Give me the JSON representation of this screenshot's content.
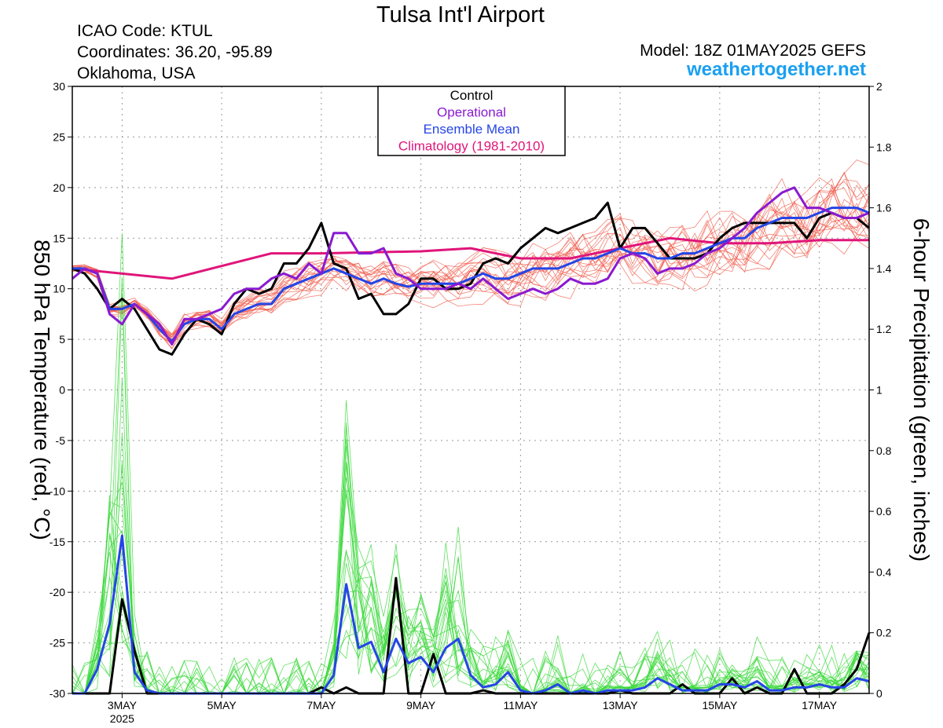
{
  "header": {
    "title": "Tulsa Int'l Airport",
    "icao": "ICAO Code: KTUL",
    "coordinates": "Coordinates: 36.20, -95.89",
    "location": "Oklahoma, USA",
    "model": "Model: 18Z 01MAY2025 GEFS",
    "site": "weathertogether.net"
  },
  "chart_data": {
    "type": "line",
    "ylabel_left": "850 hPa Temperature (red, °C)",
    "ylabel_right": "6-hour Precipitation (green, inches)",
    "y_left_range": [
      -30,
      30
    ],
    "y_left_ticks": [
      "30",
      "25",
      "20",
      "15",
      "10",
      "5",
      "0",
      "-5",
      "-10",
      "-15",
      "-20",
      "-25",
      "-30"
    ],
    "y_right_range": [
      0,
      2
    ],
    "y_right_ticks": [
      "2",
      "1.8",
      "1.6",
      "1.4",
      "1.2",
      "1",
      "0.8",
      "0.6",
      "0.4",
      "0.2",
      "0"
    ],
    "x_range_hours": [
      0,
      384
    ],
    "x_ticks": [
      {
        "hours": 24,
        "label": "3MAY"
      },
      {
        "hours": 72,
        "label": "5MAY"
      },
      {
        "hours": 120,
        "label": "7MAY"
      },
      {
        "hours": 168,
        "label": "9MAY"
      },
      {
        "hours": 216,
        "label": "11MAY"
      },
      {
        "hours": 264,
        "label": "13MAY"
      },
      {
        "hours": 312,
        "label": "15MAY"
      },
      {
        "hours": 360,
        "label": "17MAY"
      }
    ],
    "year_label": "2025",
    "grid": true,
    "legend_position": "top-center",
    "legend": [
      {
        "label": "Control",
        "color": "#000000"
      },
      {
        "label": "Operational",
        "color": "#8a1ad0"
      },
      {
        "label": "Ensemble Mean",
        "color": "#2545e6"
      },
      {
        "label": "Climatology (1981-2010)",
        "color": "#e0157a"
      }
    ],
    "colors": {
      "members_temp": "#f05a4a",
      "members_precip": "#38d838"
    },
    "series": [
      {
        "name": "Control",
        "axis": "temp",
        "color": "#000000",
        "x": [
          0,
          6,
          12,
          18,
          24,
          30,
          36,
          42,
          48,
          54,
          60,
          66,
          72,
          78,
          84,
          90,
          96,
          102,
          108,
          114,
          120,
          126,
          132,
          138,
          144,
          150,
          156,
          162,
          168,
          174,
          180,
          186,
          192,
          198,
          204,
          210,
          216,
          222,
          228,
          234,
          240,
          246,
          252,
          258,
          264,
          270,
          276,
          282,
          288,
          294,
          300,
          306,
          312,
          318,
          324,
          330,
          336,
          342,
          348,
          354,
          360,
          366,
          372,
          378,
          384
        ],
        "y": [
          12,
          11.5,
          10,
          8,
          9,
          8,
          6,
          4,
          3.5,
          5.5,
          7,
          6.5,
          5.5,
          8.5,
          10,
          9.5,
          10,
          12.5,
          12.5,
          14,
          16.5,
          12.5,
          12,
          9,
          9.5,
          7.5,
          7.5,
          8.5,
          11,
          11,
          10,
          10,
          10.5,
          12.5,
          13,
          12.5,
          14,
          15,
          16,
          15.5,
          16,
          16.5,
          17,
          18.5,
          14,
          16,
          16,
          14.5,
          13,
          13,
          13,
          13.5,
          15,
          16,
          16.5,
          16.5,
          16.5,
          16.5,
          16.5,
          15,
          17,
          17.5,
          17,
          17,
          16
        ]
      },
      {
        "name": "Operational",
        "axis": "temp",
        "color": "#8a1ad0",
        "x": [
          0,
          6,
          12,
          18,
          24,
          30,
          36,
          42,
          48,
          54,
          60,
          66,
          72,
          78,
          84,
          90,
          96,
          102,
          108,
          114,
          120,
          126,
          132,
          138,
          144,
          150,
          156,
          162,
          168,
          174,
          180,
          186,
          192,
          198,
          204,
          210,
          216,
          222,
          228,
          234,
          240,
          246,
          252,
          258,
          264,
          270,
          276,
          282,
          288,
          294,
          300,
          306,
          312,
          318,
          324,
          330,
          336,
          342,
          348,
          354,
          360,
          366,
          372,
          378,
          384
        ],
        "y": [
          11,
          12,
          11.5,
          7.5,
          6.5,
          8.5,
          7.5,
          6.5,
          4.5,
          7,
          7,
          7.5,
          8,
          9.5,
          10,
          10,
          11,
          11.5,
          11,
          12.5,
          11.5,
          15.5,
          15.5,
          13.5,
          13.5,
          14,
          11.5,
          11,
          10,
          10,
          10,
          10.5,
          10,
          11,
          10,
          9,
          9.5,
          10,
          9.5,
          10,
          11,
          10.5,
          10.5,
          11,
          13,
          13.5,
          13,
          11.5,
          12,
          12,
          12.5,
          13.5,
          14,
          15,
          16,
          17.5,
          18.5,
          19.5,
          20,
          18,
          18,
          17.5,
          17,
          17,
          17.5
        ]
      },
      {
        "name": "Ensemble Mean",
        "axis": "temp",
        "color": "#2545e6",
        "x": [
          0,
          6,
          12,
          18,
          24,
          30,
          36,
          42,
          48,
          54,
          60,
          66,
          72,
          78,
          84,
          90,
          96,
          102,
          108,
          114,
          120,
          126,
          132,
          138,
          144,
          150,
          156,
          162,
          168,
          174,
          180,
          186,
          192,
          198,
          204,
          210,
          216,
          222,
          228,
          234,
          240,
          246,
          252,
          258,
          264,
          270,
          276,
          282,
          288,
          294,
          300,
          306,
          312,
          318,
          324,
          330,
          336,
          342,
          348,
          354,
          360,
          366,
          372,
          378,
          384
        ],
        "y": [
          12,
          12,
          11.5,
          8,
          8,
          8.5,
          7.5,
          6,
          4.8,
          6.5,
          7,
          7,
          6,
          7.5,
          8,
          8.5,
          8.5,
          10,
          10.5,
          11,
          11.5,
          12,
          11.5,
          11,
          10.5,
          11,
          10.5,
          10.2,
          10.5,
          10.5,
          10.5,
          10.5,
          11,
          11.5,
          11,
          11,
          11.5,
          12,
          12,
          12,
          12.5,
          13,
          13,
          13.5,
          14,
          13.5,
          13.5,
          13,
          13,
          13.5,
          13.5,
          14,
          14.5,
          15,
          15,
          16,
          16.5,
          17,
          17,
          17,
          17.5,
          18,
          18,
          18,
          17.5
        ]
      },
      {
        "name": "Climatology (1981-2010)",
        "axis": "temp",
        "color": "#e0157a",
        "x": [
          0,
          48,
          96,
          120,
          168,
          192,
          216,
          240,
          264,
          288,
          312,
          336,
          360,
          384
        ],
        "y": [
          12,
          11,
          13.5,
          13.5,
          13.7,
          14,
          13,
          13,
          14,
          15,
          14.5,
          14.5,
          14.8,
          14.8
        ]
      },
      {
        "name": "Control",
        "axis": "precip",
        "color": "#000000",
        "x": [
          0,
          6,
          12,
          18,
          24,
          30,
          36,
          42,
          48,
          54,
          60,
          66,
          72,
          78,
          84,
          90,
          96,
          102,
          108,
          114,
          120,
          126,
          132,
          138,
          144,
          150,
          156,
          162,
          168,
          174,
          180,
          186,
          192,
          198,
          204,
          210,
          216,
          222,
          228,
          234,
          240,
          246,
          252,
          258,
          264,
          270,
          276,
          282,
          288,
          294,
          300,
          306,
          312,
          318,
          324,
          330,
          336,
          342,
          348,
          354,
          360,
          366,
          372,
          378,
          384
        ],
        "y": [
          0,
          0,
          0,
          0,
          0.31,
          0.14,
          0,
          0,
          0,
          0,
          0,
          0,
          0,
          0,
          0,
          0,
          0,
          0,
          0,
          0,
          0.02,
          0,
          0.02,
          0,
          0,
          0,
          0.38,
          0,
          0,
          0.13,
          0,
          0,
          0,
          0.01,
          0,
          0,
          0,
          0,
          0,
          0,
          0,
          0,
          0,
          0,
          0.01,
          0,
          0,
          0,
          0,
          0.03,
          0,
          0,
          0,
          0.05,
          0,
          0.02,
          0,
          0,
          0.08,
          0,
          0,
          0,
          0.03,
          0.08,
          0.2
        ]
      },
      {
        "name": "Ensemble Mean",
        "axis": "precip",
        "color": "#2545e6",
        "x": [
          0,
          6,
          12,
          18,
          24,
          30,
          36,
          42,
          48,
          54,
          60,
          66,
          72,
          78,
          84,
          90,
          96,
          102,
          108,
          114,
          120,
          126,
          132,
          138,
          144,
          150,
          156,
          162,
          168,
          174,
          180,
          186,
          192,
          198,
          204,
          210,
          216,
          222,
          228,
          234,
          240,
          246,
          252,
          258,
          264,
          270,
          276,
          282,
          288,
          294,
          300,
          306,
          312,
          318,
          324,
          330,
          336,
          342,
          348,
          354,
          360,
          366,
          372,
          378,
          384
        ],
        "y": [
          0,
          0,
          0.08,
          0.23,
          0.52,
          0.07,
          0.01,
          0,
          0,
          0,
          0,
          0,
          0,
          0,
          0,
          0,
          0,
          0,
          0,
          0,
          0,
          0.06,
          0.36,
          0.15,
          0.17,
          0.07,
          0.18,
          0.1,
          0.12,
          0.07,
          0.15,
          0.18,
          0.06,
          0.02,
          0.03,
          0.07,
          0.01,
          0,
          0.01,
          0.03,
          0,
          0.01,
          0,
          0.01,
          0.01,
          0.01,
          0.02,
          0.05,
          0.03,
          0.01,
          0.01,
          0.01,
          0.03,
          0.03,
          0.02,
          0.04,
          0.01,
          0.01,
          0.02,
          0.02,
          0.03,
          0.02,
          0.02,
          0.05,
          0.04
        ]
      }
    ]
  }
}
